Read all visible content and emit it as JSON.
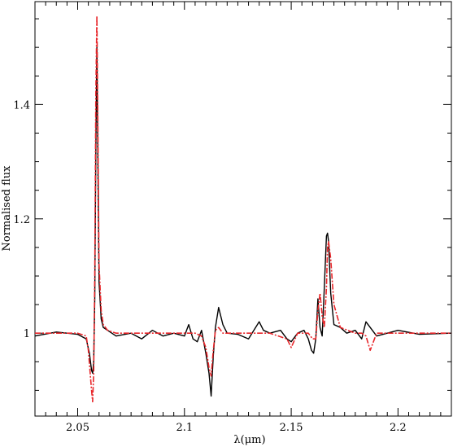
{
  "chart_data": {
    "type": "line",
    "xlabel": "λ(μm)",
    "ylabel": "Normalised flux",
    "title": "",
    "xlim": [
      2.03,
      2.225
    ],
    "ylim": [
      0.855,
      1.58
    ],
    "grid": false,
    "x_ticks": [
      {
        "value": 2.05,
        "label": "2.05"
      },
      {
        "value": 2.1,
        "label": "2.1"
      },
      {
        "value": 2.15,
        "label": "2.15"
      },
      {
        "value": 2.2,
        "label": "2.2"
      }
    ],
    "y_ticks": [
      {
        "value": 1.0,
        "label": "1"
      },
      {
        "value": 1.2,
        "label": "1.2"
      },
      {
        "value": 1.4,
        "label": "1.4"
      }
    ],
    "series": [
      {
        "style": "solid",
        "color": "#000000",
        "x": [
          2.03,
          2.04,
          2.05,
          2.054,
          2.0555,
          2.0565,
          2.057,
          2.0575,
          2.058,
          2.0585,
          2.059,
          2.0595,
          2.06,
          2.061,
          2.062,
          2.064,
          2.068,
          2.075,
          2.08,
          2.085,
          2.09,
          2.095,
          2.1,
          2.102,
          2.104,
          2.106,
          2.108,
          2.11,
          2.1115,
          2.1125,
          2.1135,
          2.1145,
          2.116,
          2.118,
          2.12,
          2.125,
          2.13,
          2.135,
          2.137,
          2.14,
          2.145,
          2.148,
          2.15,
          2.153,
          2.156,
          2.158,
          2.1595,
          2.1605,
          2.1615,
          2.1625,
          2.1635,
          2.1645,
          2.1655,
          2.1665,
          2.167,
          2.1675,
          2.1685,
          2.17,
          2.173,
          2.176,
          2.18,
          2.183,
          2.185,
          2.19,
          2.2,
          2.21,
          2.225
        ],
        "y": [
          0.995,
          1.002,
          0.998,
          0.99,
          0.965,
          0.935,
          0.93,
          0.95,
          1.06,
          1.32,
          1.5,
          1.28,
          1.09,
          1.025,
          1.01,
          1.005,
          0.995,
          1.0,
          0.99,
          1.005,
          0.995,
          1.0,
          0.995,
          1.015,
          0.99,
          0.985,
          1.005,
          0.965,
          0.93,
          0.89,
          0.96,
          1.01,
          1.045,
          1.015,
          1.0,
          0.998,
          0.99,
          1.02,
          1.005,
          1.0,
          1.005,
          0.99,
          0.985,
          1.0,
          1.005,
          0.99,
          0.97,
          0.965,
          0.99,
          1.06,
          1.01,
          0.995,
          1.08,
          1.17,
          1.175,
          1.16,
          1.07,
          1.015,
          1.01,
          1.0,
          1.005,
          0.99,
          1.02,
          0.995,
          1.005,
          0.998,
          1.0
        ]
      },
      {
        "style": "dash-dot",
        "color": "#e8262a",
        "x": [
          2.03,
          2.04,
          2.05,
          2.054,
          2.055,
          2.0565,
          2.057,
          2.0575,
          2.058,
          2.0585,
          2.059,
          2.0595,
          2.06,
          2.061,
          2.062,
          2.064,
          2.068,
          2.075,
          2.085,
          2.095,
          2.105,
          2.108,
          2.11,
          2.1115,
          2.1125,
          2.1135,
          2.1145,
          2.116,
          2.118,
          2.12,
          2.13,
          2.14,
          2.148,
          2.15,
          2.153,
          2.158,
          2.16,
          2.1615,
          2.1625,
          2.1635,
          2.1645,
          2.1655,
          2.1665,
          2.167,
          2.1675,
          2.1685,
          2.17,
          2.173,
          2.18,
          2.183,
          2.185,
          2.187,
          2.19,
          2.2,
          2.21,
          2.225
        ],
        "y": [
          1.0,
          1.0,
          1.0,
          0.995,
          0.97,
          0.9,
          0.88,
          0.93,
          1.1,
          1.42,
          1.555,
          1.35,
          1.12,
          1.04,
          1.015,
          1.005,
          1.0,
          1.0,
          1.0,
          1.0,
          1.0,
          0.995,
          0.975,
          0.94,
          0.925,
          0.97,
          1.005,
          1.01,
          1.0,
          1.0,
          1.0,
          1.0,
          0.99,
          0.975,
          1.0,
          1.0,
          0.99,
          0.99,
          1.04,
          1.07,
          1.03,
          1.01,
          1.08,
          1.15,
          1.16,
          1.13,
          1.05,
          1.01,
          1.0,
          1.0,
          0.995,
          0.97,
          1.0,
          1.0,
          1.0,
          1.0
        ]
      }
    ]
  }
}
